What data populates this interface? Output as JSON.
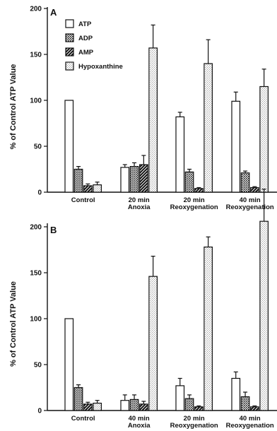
{
  "chart_data": [
    {
      "panel": "A",
      "type": "bar",
      "ylabel": "% of Control ATP Value",
      "ylim": [
        0,
        200
      ],
      "yticks": [
        0,
        50,
        100,
        150,
        200
      ],
      "categories": [
        [
          "Control"
        ],
        [
          "20 min",
          "Anoxia"
        ],
        [
          "20 min",
          "Reoxygenation"
        ],
        [
          "40 min",
          "Reoxygenation"
        ]
      ],
      "series": [
        {
          "name": "ATP",
          "values": [
            100,
            27,
            82,
            99
          ],
          "errors": [
            0,
            3,
            5,
            10
          ]
        },
        {
          "name": "ADP",
          "values": [
            25,
            28,
            22,
            21
          ],
          "errors": [
            3,
            4,
            3,
            2
          ]
        },
        {
          "name": "AMP",
          "values": [
            7,
            30,
            4,
            5
          ],
          "errors": [
            2,
            10,
            1,
            1
          ]
        },
        {
          "name": "Hypoxanthine",
          "values": [
            8,
            157,
            140,
            115
          ],
          "errors": [
            3,
            25,
            26,
            19
          ]
        }
      ],
      "legend": [
        "ATP",
        "ADP",
        "AMP",
        "Hypoxanthine"
      ],
      "legend_position": "top-left"
    },
    {
      "panel": "B",
      "type": "bar",
      "ylabel": "% of Control ATP Value",
      "ylim": [
        0,
        200
      ],
      "yticks": [
        0,
        50,
        100,
        150,
        200
      ],
      "categories": [
        [
          "Control"
        ],
        [
          "40 min",
          "Anoxia"
        ],
        [
          "20 min",
          "Reoxygenation"
        ],
        [
          "40 min",
          "Reoxygenation"
        ]
      ],
      "series": [
        {
          "name": "ATP",
          "values": [
            100,
            11,
            27,
            35
          ],
          "errors": [
            0,
            6,
            8,
            7
          ]
        },
        {
          "name": "ADP",
          "values": [
            25,
            12,
            13,
            15
          ],
          "errors": [
            3,
            5,
            4,
            5
          ]
        },
        {
          "name": "AMP",
          "values": [
            7,
            7,
            4,
            4
          ],
          "errors": [
            2,
            3,
            1,
            1
          ]
        },
        {
          "name": "Hypoxanthine",
          "values": [
            8,
            146,
            178,
            206
          ],
          "errors": [
            3,
            22,
            11,
            35
          ]
        }
      ]
    }
  ],
  "colors": {
    "ink": "#111111",
    "atp": "#ffffff",
    "adp": "#9a9a9a",
    "amp": "#3c3c3c",
    "hypoxanthine": "#cfcfcf"
  }
}
